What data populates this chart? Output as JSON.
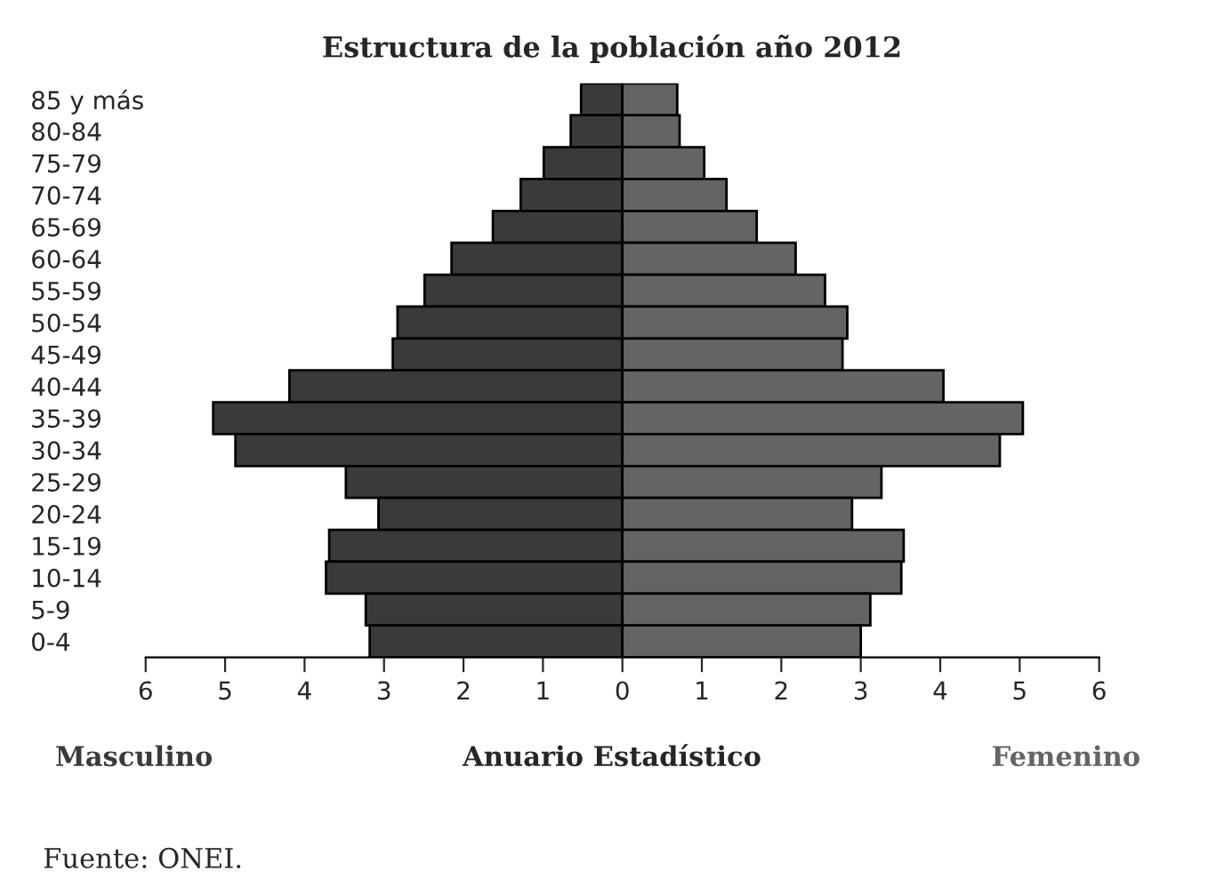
{
  "chart_data": {
    "type": "bar",
    "orientation": "horizontal",
    "title": "Estructura de la población año 2012",
    "categories": [
      "85 y más",
      "80-84",
      "75-79",
      "70-74",
      "65-69",
      "60-64",
      "55-59",
      "50-54",
      "45-49",
      "40-44",
      "35-39",
      "30-34",
      "25-29",
      "20-24",
      "15-19",
      "10-14",
      "5-9",
      "0-4"
    ],
    "series": [
      {
        "name": "Masculino",
        "color": "#3a3a3a",
        "values": [
          -0.52,
          -0.65,
          -0.99,
          -1.28,
          -1.63,
          -2.15,
          -2.49,
          -2.83,
          -2.89,
          -4.19,
          -5.15,
          -4.87,
          -3.48,
          -3.07,
          -3.69,
          -3.73,
          -3.23,
          -3.18
        ]
      },
      {
        "name": "Femenino",
        "color": "#646464",
        "values": [
          0.69,
          0.72,
          1.03,
          1.31,
          1.69,
          2.18,
          2.55,
          2.83,
          2.77,
          4.04,
          5.04,
          4.75,
          3.26,
          2.89,
          3.54,
          3.51,
          3.12,
          3.0
        ]
      }
    ],
    "xlim": [
      -6,
      6
    ],
    "xticks": [
      {
        "value": -6,
        "label": "6"
      },
      {
        "value": -5,
        "label": "5"
      },
      {
        "value": -4,
        "label": "4"
      },
      {
        "value": -3,
        "label": "3"
      },
      {
        "value": -2,
        "label": "2"
      },
      {
        "value": -1,
        "label": "1"
      },
      0,
      1,
      2,
      3,
      4,
      5,
      6
    ],
    "annotations": [
      "Anuario Estadístico",
      "Fuente: ONEI."
    ],
    "stacked": true,
    "grid": false,
    "legend": false
  }
}
